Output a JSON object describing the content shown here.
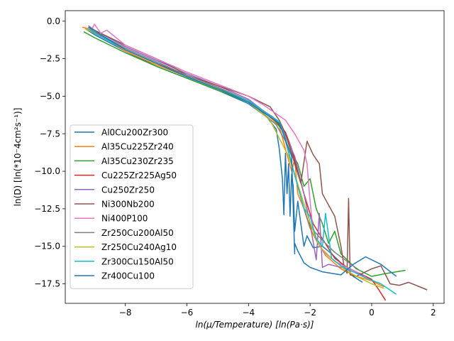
{
  "chart_data": {
    "type": "line",
    "xlabel": "ln(μ/Temperature) [ln(Pa·s)]",
    "ylabel": "ln(D) [ln(*10⁻4cm²s⁻¹)]",
    "xlim": [
      -9.95,
      2.35
    ],
    "ylim": [
      -18.8,
      0.7
    ],
    "xticks": [
      -8,
      -6,
      -4,
      -2,
      0,
      2
    ],
    "xtick_labels": [
      "−8",
      "−6",
      "−4",
      "−2",
      "0",
      "2"
    ],
    "yticks": [
      0.0,
      -2.5,
      -5.0,
      -7.5,
      -10.0,
      -12.5,
      -15.0,
      -17.5
    ],
    "ytick_labels": [
      "0.0",
      "−2.5",
      "−5.0",
      "−7.5",
      "−10.0",
      "−12.5",
      "−15.0",
      "−17.5"
    ],
    "grid": false,
    "legend": "lower-left",
    "series": [
      {
        "name": "Al0Cu200Zr300",
        "color": "#1f77b4",
        "x": [
          -9.3,
          -9.0,
          -8.0,
          -7.0,
          -6.0,
          -5.0,
          -4.0,
          -3.4,
          -3.1,
          -3.0,
          -2.9,
          -2.85,
          -2.8,
          -2.75,
          -2.7,
          -2.65,
          -2.6,
          -2.55,
          -2.5,
          -2.4,
          -2.3,
          -2.2,
          -2.1,
          -1.9,
          -1.6,
          -1.3,
          -1.0,
          -0.8,
          -0.6,
          -0.3
        ],
        "y": [
          -0.5,
          -0.9,
          -2.0,
          -3.0,
          -3.8,
          -4.6,
          -5.5,
          -6.4,
          -7.2,
          -8.5,
          -10.5,
          -12.9,
          -8.8,
          -11.5,
          -9.5,
          -13.0,
          -10.2,
          -11.0,
          -14.0,
          -12.0,
          -13.5,
          -15.0,
          -14.3,
          -15.1,
          -15.0,
          -15.5,
          -16.1,
          -16.6,
          -17.0,
          -17.4
        ]
      },
      {
        "name": "Al35Cu225Zr240",
        "color": "#ff7f0e",
        "x": [
          -9.4,
          -9.2,
          -8.6,
          -8.0,
          -7.0,
          -6.0,
          -5.0,
          -4.0,
          -3.5,
          -3.0,
          -2.8,
          -2.6,
          -2.5,
          -2.4,
          -2.2,
          -2.0,
          -1.8,
          -1.5,
          -1.0,
          -0.5,
          0.0,
          0.4
        ],
        "y": [
          -0.4,
          -0.5,
          -1.2,
          -2.0,
          -2.9,
          -3.7,
          -4.5,
          -5.3,
          -6.0,
          -7.0,
          -8.5,
          -10.0,
          -9.2,
          -11.5,
          -12.5,
          -13.8,
          -14.6,
          -15.6,
          -16.5,
          -17.0,
          -17.3,
          -17.7
        ]
      },
      {
        "name": "Al35Cu230Zr235",
        "color": "#2ca02c",
        "x": [
          -9.35,
          -9.0,
          -8.0,
          -7.0,
          -6.0,
          -5.0,
          -4.0,
          -3.2,
          -2.8,
          -2.6,
          -2.4,
          -2.2,
          -2.0,
          -1.8,
          -1.6,
          -1.4,
          -1.2,
          -1.0,
          -0.5,
          0.0,
          0.5,
          1.1
        ],
        "y": [
          -0.7,
          -1.1,
          -2.1,
          -3.0,
          -3.8,
          -4.6,
          -5.4,
          -6.5,
          -7.5,
          -8.8,
          -9.5,
          -11.0,
          -10.5,
          -12.5,
          -13.5,
          -14.8,
          -14.0,
          -15.5,
          -16.5,
          -17.0,
          -16.8,
          -16.6
        ]
      },
      {
        "name": "Cu225Zr225Ag50",
        "color": "#d62728",
        "x": [
          -9.3,
          -9.0,
          -8.0,
          -7.0,
          -6.0,
          -5.0,
          -4.0,
          -3.2,
          -2.8,
          -2.6,
          -2.4,
          -2.2,
          -1.9,
          -1.6,
          -1.2,
          -0.8,
          -0.4,
          0.0,
          0.2,
          0.45
        ],
        "y": [
          -0.5,
          -0.8,
          -1.9,
          -2.8,
          -3.6,
          -4.4,
          -5.3,
          -6.4,
          -7.4,
          -8.5,
          -10.0,
          -11.5,
          -13.5,
          -14.5,
          -15.8,
          -16.4,
          -16.8,
          -17.2,
          -17.8,
          -18.6
        ]
      },
      {
        "name": "Cu250Zr250",
        "color": "#9467bd",
        "x": [
          -9.2,
          -9.0,
          -8.0,
          -7.0,
          -6.0,
          -5.0,
          -4.0,
          -3.0,
          -2.8,
          -2.5,
          -2.2,
          -2.0,
          -1.8,
          -1.7,
          -1.6,
          -1.4,
          -1.0,
          -0.6,
          -0.2
        ],
        "y": [
          -0.3,
          -0.6,
          -1.7,
          -2.6,
          -3.5,
          -4.3,
          -5.2,
          -6.8,
          -7.6,
          -9.0,
          -11.5,
          -13.5,
          -15.9,
          -12.8,
          -16.4,
          -16.2,
          -16.4,
          -16.7,
          -17.0
        ]
      },
      {
        "name": "Ni300Nb200",
        "color": "#8c564b",
        "x": [
          -9.0,
          -8.5,
          -8.0,
          -7.0,
          -6.5,
          -6.0,
          -5.0,
          -4.0,
          -3.3,
          -3.0,
          -2.8,
          -2.6,
          -2.5,
          -2.3,
          -2.1,
          -1.9,
          -1.7,
          -1.6,
          -1.2,
          -1.0,
          -0.9,
          -0.8,
          -0.75,
          -0.7,
          -0.5,
          -0.3,
          0.0,
          0.3,
          0.6,
          0.9,
          1.2,
          1.8
        ],
        "y": [
          -0.6,
          -1.1,
          -1.6,
          -2.5,
          -3.0,
          -3.6,
          -4.3,
          -5.0,
          -5.7,
          -6.6,
          -7.5,
          -8.8,
          -9.5,
          -10.8,
          -8.0,
          -8.9,
          -9.5,
          -11.5,
          -13.0,
          -15.0,
          -16.3,
          -16.8,
          -11.8,
          -16.9,
          -17.0,
          -16.8,
          -16.5,
          -16.3,
          -17.5,
          -17.6,
          -17.4,
          -17.9
        ]
      },
      {
        "name": "Ni400P100",
        "color": "#e377c2",
        "x": [
          -9.3,
          -9.1,
          -9.0,
          -8.8,
          -8.6,
          -8.0,
          -7.0,
          -6.0,
          -5.0,
          -4.0,
          -3.5,
          -2.8,
          -2.5,
          -2.2,
          -2.1,
          -2.0,
          -1.9,
          -1.6,
          -1.2,
          -0.8,
          -0.4
        ],
        "y": [
          -0.5,
          -0.6,
          -0.2,
          -0.8,
          -0.6,
          -1.6,
          -2.5,
          -3.4,
          -4.2,
          -5.0,
          -5.6,
          -6.6,
          -7.5,
          -8.6,
          -9.5,
          -12.0,
          -14.0,
          -15.3,
          -16.0,
          -16.4,
          -16.8
        ]
      },
      {
        "name": "Zr250Cu200Al50",
        "color": "#7f7f7f",
        "x": [
          -9.2,
          -9.0,
          -8.0,
          -7.0,
          -6.0,
          -5.0,
          -4.0,
          -3.1,
          -2.8,
          -2.6,
          -2.4,
          -2.2,
          -2.0,
          -1.6,
          -1.2,
          -0.8,
          -0.4
        ],
        "y": [
          -0.4,
          -0.7,
          -1.8,
          -2.7,
          -3.6,
          -4.4,
          -5.3,
          -6.9,
          -8.0,
          -9.5,
          -11.0,
          -12.5,
          -13.7,
          -14.6,
          -15.4,
          -16.0,
          -16.6
        ]
      },
      {
        "name": "Zr250Cu240Ag10",
        "color": "#bcbd22",
        "x": [
          -9.3,
          -9.0,
          -8.0,
          -7.0,
          -6.0,
          -5.0,
          -4.0,
          -3.3,
          -3.0,
          -2.7,
          -2.5,
          -2.3,
          -2.1,
          -1.9,
          -1.7,
          -1.3,
          -0.9,
          -0.5,
          0.0,
          0.4
        ],
        "y": [
          -0.5,
          -0.8,
          -1.9,
          -2.8,
          -3.7,
          -4.5,
          -5.4,
          -6.6,
          -7.8,
          -9.0,
          -10.2,
          -11.5,
          -12.8,
          -14.0,
          -15.0,
          -15.8,
          -16.5,
          -17.0,
          -17.5,
          -17.8
        ]
      },
      {
        "name": "Zr300Cu150Al50",
        "color": "#17becf",
        "x": [
          -9.2,
          -9.0,
          -8.0,
          -7.0,
          -6.0,
          -5.0,
          -4.0,
          -3.0,
          -2.8,
          -2.6,
          -2.4,
          -2.2,
          -2.0,
          -1.8,
          -1.6,
          -1.5,
          -1.3,
          -1.0,
          -0.6,
          -0.2,
          0.3,
          0.8
        ],
        "y": [
          -0.5,
          -0.8,
          -1.9,
          -2.8,
          -3.7,
          -4.5,
          -5.3,
          -6.7,
          -7.8,
          -9.5,
          -11.0,
          -12.5,
          -13.0,
          -14.5,
          -15.0,
          -12.8,
          -15.8,
          -16.3,
          -16.7,
          -17.1,
          -17.5,
          -18.2
        ]
      },
      {
        "name": "Zr400Cu100",
        "color": "#1f77b4",
        "x": [
          -9.2,
          -9.0,
          -8.8,
          -8.0,
          -7.0,
          -6.0,
          -5.0,
          -4.0,
          -3.0,
          -2.6,
          -2.5,
          -2.5,
          -2.4,
          -2.2,
          -2.0,
          -1.6,
          -1.0,
          -0.6,
          -0.2,
          0.3,
          0.8
        ],
        "y": [
          -0.4,
          -0.6,
          -0.9,
          -1.9,
          -2.8,
          -3.7,
          -4.5,
          -5.4,
          -6.8,
          -9.0,
          -15.5,
          -14.8,
          -15.3,
          -16.1,
          -16.4,
          -16.7,
          -16.9,
          -16.2,
          -15.7,
          -16.2,
          -17.0
        ]
      }
    ]
  }
}
